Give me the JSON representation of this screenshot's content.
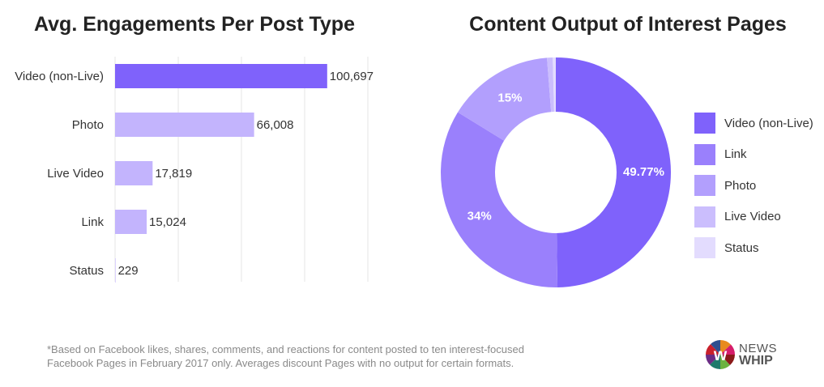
{
  "chart_data": [
    {
      "type": "bar",
      "orientation": "horizontal",
      "title": "Avg. Engagements Per Post Type",
      "categories": [
        "Video (non-Live)",
        "Photo",
        "Live Video",
        "Link",
        "Status"
      ],
      "values": [
        100697,
        66008,
        17819,
        15024,
        229
      ],
      "value_labels": [
        "100,697",
        "66,008",
        "17,819",
        "15,024",
        "229"
      ],
      "colors": [
        "#7f62fb",
        "#c3b4fd",
        "#c3b4fd",
        "#c3b4fd",
        "#c3b4fd"
      ],
      "xlim": [
        0,
        120000
      ],
      "grid": true
    },
    {
      "type": "pie",
      "donut": true,
      "title": "Content Output of Interest Pages",
      "labels": [
        "Video (non-Live)",
        "Link",
        "Photo",
        "Live Video",
        "Status"
      ],
      "values": [
        49.77,
        34,
        15,
        0.8,
        0.43
      ],
      "data_labels": [
        "49.77%",
        "34%",
        "15%",
        "",
        ""
      ],
      "colors": [
        "#7f62fb",
        "#9a80fc",
        "#b29ffd",
        "#cbbefd",
        "#e3dcfe"
      ],
      "legend": "right"
    }
  ],
  "footnote": [
    "*Based on Facebook likes, shares, comments, and reactions for content posted to ten interest-focused",
    "Facebook Pages in February 2017 only. Averages discount Pages with no output for certain formats."
  ],
  "logo": {
    "line1": "NEWS",
    "line2": "WHIP"
  }
}
